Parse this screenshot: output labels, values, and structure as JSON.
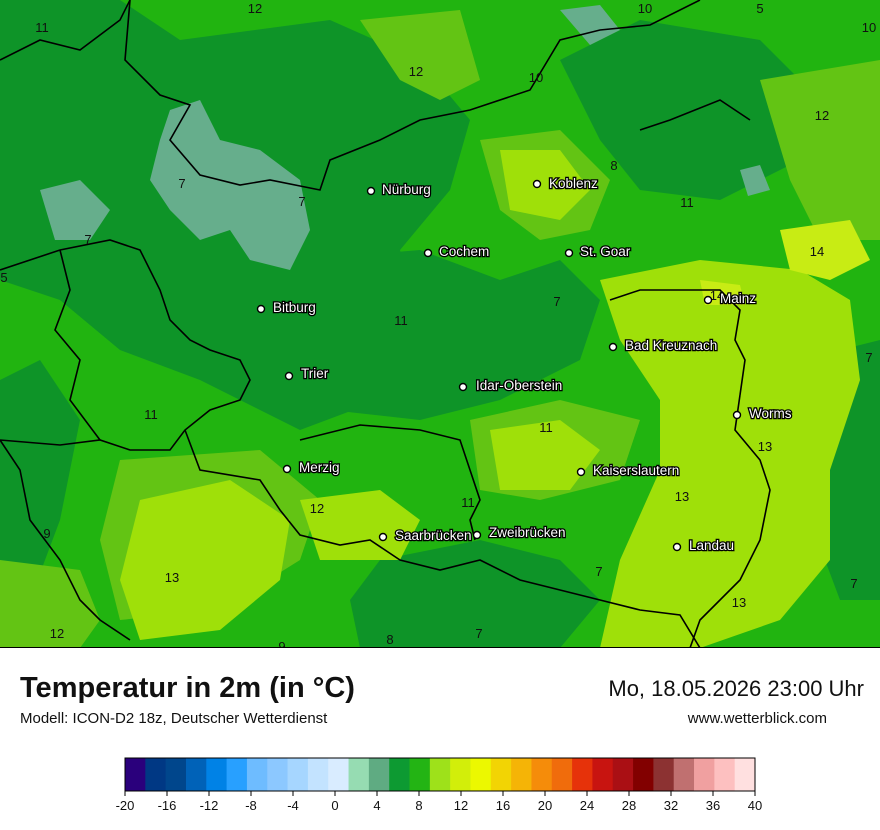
{
  "map": {
    "cities": [
      {
        "name": "Nürburg"
      },
      {
        "name": "Koblenz"
      },
      {
        "name": "Cochem"
      },
      {
        "name": "St. Goar"
      },
      {
        "name": "Mainz"
      },
      {
        "name": "Bitburg"
      },
      {
        "name": "Bad Kreuznach"
      },
      {
        "name": "Trier"
      },
      {
        "name": "Idar-Oberstein"
      },
      {
        "name": "Worms"
      },
      {
        "name": "Merzig"
      },
      {
        "name": "Kaiserslautern"
      },
      {
        "name": "Saarbrücken"
      },
      {
        "name": "Zweibrücken"
      },
      {
        "name": "Landau"
      }
    ],
    "contour_labels": [
      "12",
      "11",
      "12",
      "10",
      "10",
      "5",
      "10",
      "12",
      "7",
      "7",
      "7",
      "8",
      "11",
      "14",
      "11",
      "7",
      "11",
      "14",
      "7",
      "11",
      "13",
      "11",
      "13",
      "12",
      "9",
      "13",
      "7",
      "12",
      "9",
      "8",
      "7",
      "13",
      "7",
      "5"
    ],
    "colors": {
      "t13": "#9fe009",
      "t12": "#63c414",
      "t11": "#21b410",
      "t10": "#1aa51e",
      "t8": "#0e9428",
      "t7": "#66ae8c",
      "t14": "#c8ec14"
    }
  },
  "footer": {
    "title": "Temperatur in 2m (in °C)",
    "subtitle": "Modell: ICON-D2 18z, Deutscher Wetterdienst",
    "datetime": "Mo, 18.05.2026 23:00 Uhr",
    "website": "www.wetterblick.com"
  },
  "legend": {
    "colors": [
      "#2a007c",
      "#003884",
      "#00468c",
      "#0062b8",
      "#0082e6",
      "#28a0ff",
      "#6ebcff",
      "#8cc8ff",
      "#a6d6ff",
      "#c3e3ff",
      "#d9ecff",
      "#96dcb2",
      "#5fab82",
      "#0d9a32",
      "#23b414",
      "#9ee11a",
      "#d2ee0a",
      "#ecf800",
      "#f2d404",
      "#f5b406",
      "#f58c0a",
      "#f06c0c",
      "#e6320a",
      "#c81410",
      "#aa0f14",
      "#820000",
      "#8c3232",
      "#c07070",
      "#f0a0a0",
      "#fdc0c0",
      "#ffe0e0"
    ],
    "ticks": [
      "-20",
      "-16",
      "-12",
      "-8",
      "-4",
      "0",
      "4",
      "8",
      "12",
      "16",
      "20",
      "24",
      "28",
      "32",
      "36",
      "40"
    ]
  }
}
